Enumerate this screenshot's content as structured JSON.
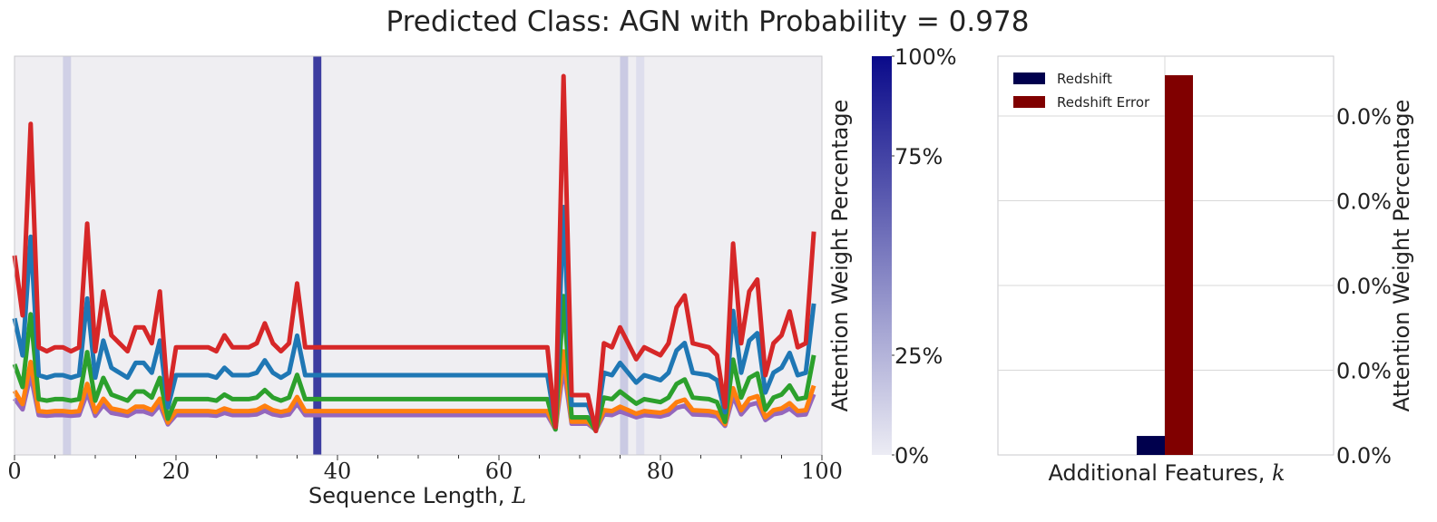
{
  "title": "Predicted Class: AGN with Probability = 0.978",
  "sequence_panel": {
    "xlabel_text": "Sequence Length, ",
    "xlabel_var": "L",
    "xticks": [
      0,
      20,
      40,
      60,
      80,
      100
    ],
    "xlim": [
      0,
      100
    ],
    "background_color": "#efeef2",
    "attention_bands": [
      {
        "x": 6.5,
        "level": 0.15
      },
      {
        "x": 37.5,
        "level": 0.92
      },
      {
        "x": 75.5,
        "level": 0.18
      },
      {
        "x": 77.5,
        "level": 0.08
      }
    ]
  },
  "colorbar": {
    "label": "Attention Weight Percentage",
    "tick_labels": [
      "0%",
      "25%",
      "75%",
      "100%"
    ],
    "tick_values": [
      0,
      25,
      75,
      100
    ],
    "color_low": "#ececf4",
    "color_high": "#0a0a8a"
  },
  "features_panel": {
    "xlabel_text": "Additional Features, ",
    "xlabel_var": "k",
    "ylabel": "Attention Weight Percentage",
    "ytick_labels": [
      "0.0%",
      "0.0%",
      "0.0%",
      "0.0%",
      "0.0%"
    ]
  },
  "chart_data": [
    {
      "type": "line",
      "panel": "sequence",
      "xlabel": "Sequence Length, L",
      "xlim": [
        0,
        100
      ],
      "ylim": [
        0,
        1
      ],
      "grid": false,
      "colors": [
        "#d62728",
        "#1f77b4",
        "#2ca02c",
        "#ff7f0e",
        "#9467bd"
      ],
      "keypoints": [
        [
          0,
          0.5
        ],
        [
          1,
          0.35
        ],
        [
          2,
          0.83
        ],
        [
          3,
          0.27
        ],
        [
          4,
          0.26
        ],
        [
          5,
          0.27
        ],
        [
          6,
          0.27
        ],
        [
          7,
          0.26
        ],
        [
          8,
          0.27
        ],
        [
          9,
          0.58
        ],
        [
          10,
          0.26
        ],
        [
          11,
          0.41
        ],
        [
          12,
          0.3
        ],
        [
          13,
          0.28
        ],
        [
          14,
          0.26
        ],
        [
          15,
          0.32
        ],
        [
          16,
          0.32
        ],
        [
          17,
          0.28
        ],
        [
          18,
          0.41
        ],
        [
          19,
          0.14
        ],
        [
          20,
          0.27
        ],
        [
          24,
          0.27
        ],
        [
          25,
          0.26
        ],
        [
          26,
          0.3
        ],
        [
          27,
          0.27
        ],
        [
          28,
          0.27
        ],
        [
          29,
          0.27
        ],
        [
          30,
          0.28
        ],
        [
          31,
          0.33
        ],
        [
          32,
          0.28
        ],
        [
          33,
          0.26
        ],
        [
          34,
          0.28
        ],
        [
          35,
          0.43
        ],
        [
          36,
          0.27
        ],
        [
          66,
          0.27
        ],
        [
          67,
          0.07
        ],
        [
          68,
          0.95
        ],
        [
          69,
          0.15
        ],
        [
          71,
          0.15
        ],
        [
          72,
          0.06
        ],
        [
          73,
          0.28
        ],
        [
          74,
          0.27
        ],
        [
          75,
          0.32
        ],
        [
          76,
          0.28
        ],
        [
          77,
          0.24
        ],
        [
          78,
          0.27
        ],
        [
          80,
          0.25
        ],
        [
          81,
          0.28
        ],
        [
          82,
          0.37
        ],
        [
          83,
          0.4
        ],
        [
          84,
          0.28
        ],
        [
          86,
          0.27
        ],
        [
          87,
          0.25
        ],
        [
          88,
          0.12
        ],
        [
          89,
          0.53
        ],
        [
          90,
          0.28
        ],
        [
          91,
          0.41
        ],
        [
          92,
          0.44
        ],
        [
          93,
          0.2
        ],
        [
          94,
          0.28
        ],
        [
          95,
          0.3
        ],
        [
          96,
          0.36
        ],
        [
          97,
          0.27
        ],
        [
          98,
          0.28
        ],
        [
          99,
          0.56
        ]
      ],
      "series_baselines": [
        0.27,
        0.2,
        0.14,
        0.11,
        0.1
      ],
      "series_gains": [
        1.0,
        0.62,
        0.38,
        0.22,
        0.18
      ]
    },
    {
      "type": "bar",
      "panel": "features",
      "xlabel": "Additional Features, k",
      "ylabel": "Attention Weight Percentage",
      "categories": [
        "Redshift",
        "Redshift Error"
      ],
      "values": [
        0.05,
        1.0
      ],
      "colors": [
        "#00004d",
        "#800000"
      ],
      "ylim": [
        0,
        1.05
      ],
      "grid": true,
      "legend_placement": "top-left"
    }
  ]
}
